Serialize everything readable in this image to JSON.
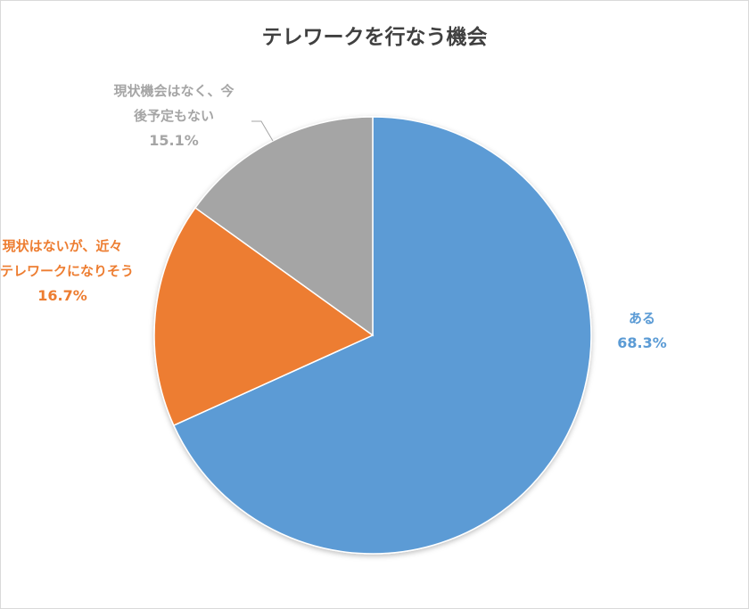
{
  "chart_data": {
    "type": "pie",
    "title": "テレワークを行なう機会",
    "slices": [
      {
        "label": "ある",
        "label_lines": [
          "ある"
        ],
        "value": 68.3,
        "pct_text": "68.3%",
        "color": "#5b9bd5"
      },
      {
        "label": "現状はないが、近々テレワークになりそう",
        "label_lines": [
          "現状はないが、近々",
          "テレワークになりそう"
        ],
        "value": 16.7,
        "pct_text": "16.7%",
        "color": "#ed7d31"
      },
      {
        "label": "現状機会はなく、今後予定もない",
        "label_lines": [
          "現状機会はなく、今",
          "後予定もない"
        ],
        "value": 15.1,
        "pct_text": "15.1%",
        "color": "#a5a5a5"
      }
    ],
    "start_angle": "12 o'clock",
    "direction": "clockwise",
    "legend": "none"
  }
}
